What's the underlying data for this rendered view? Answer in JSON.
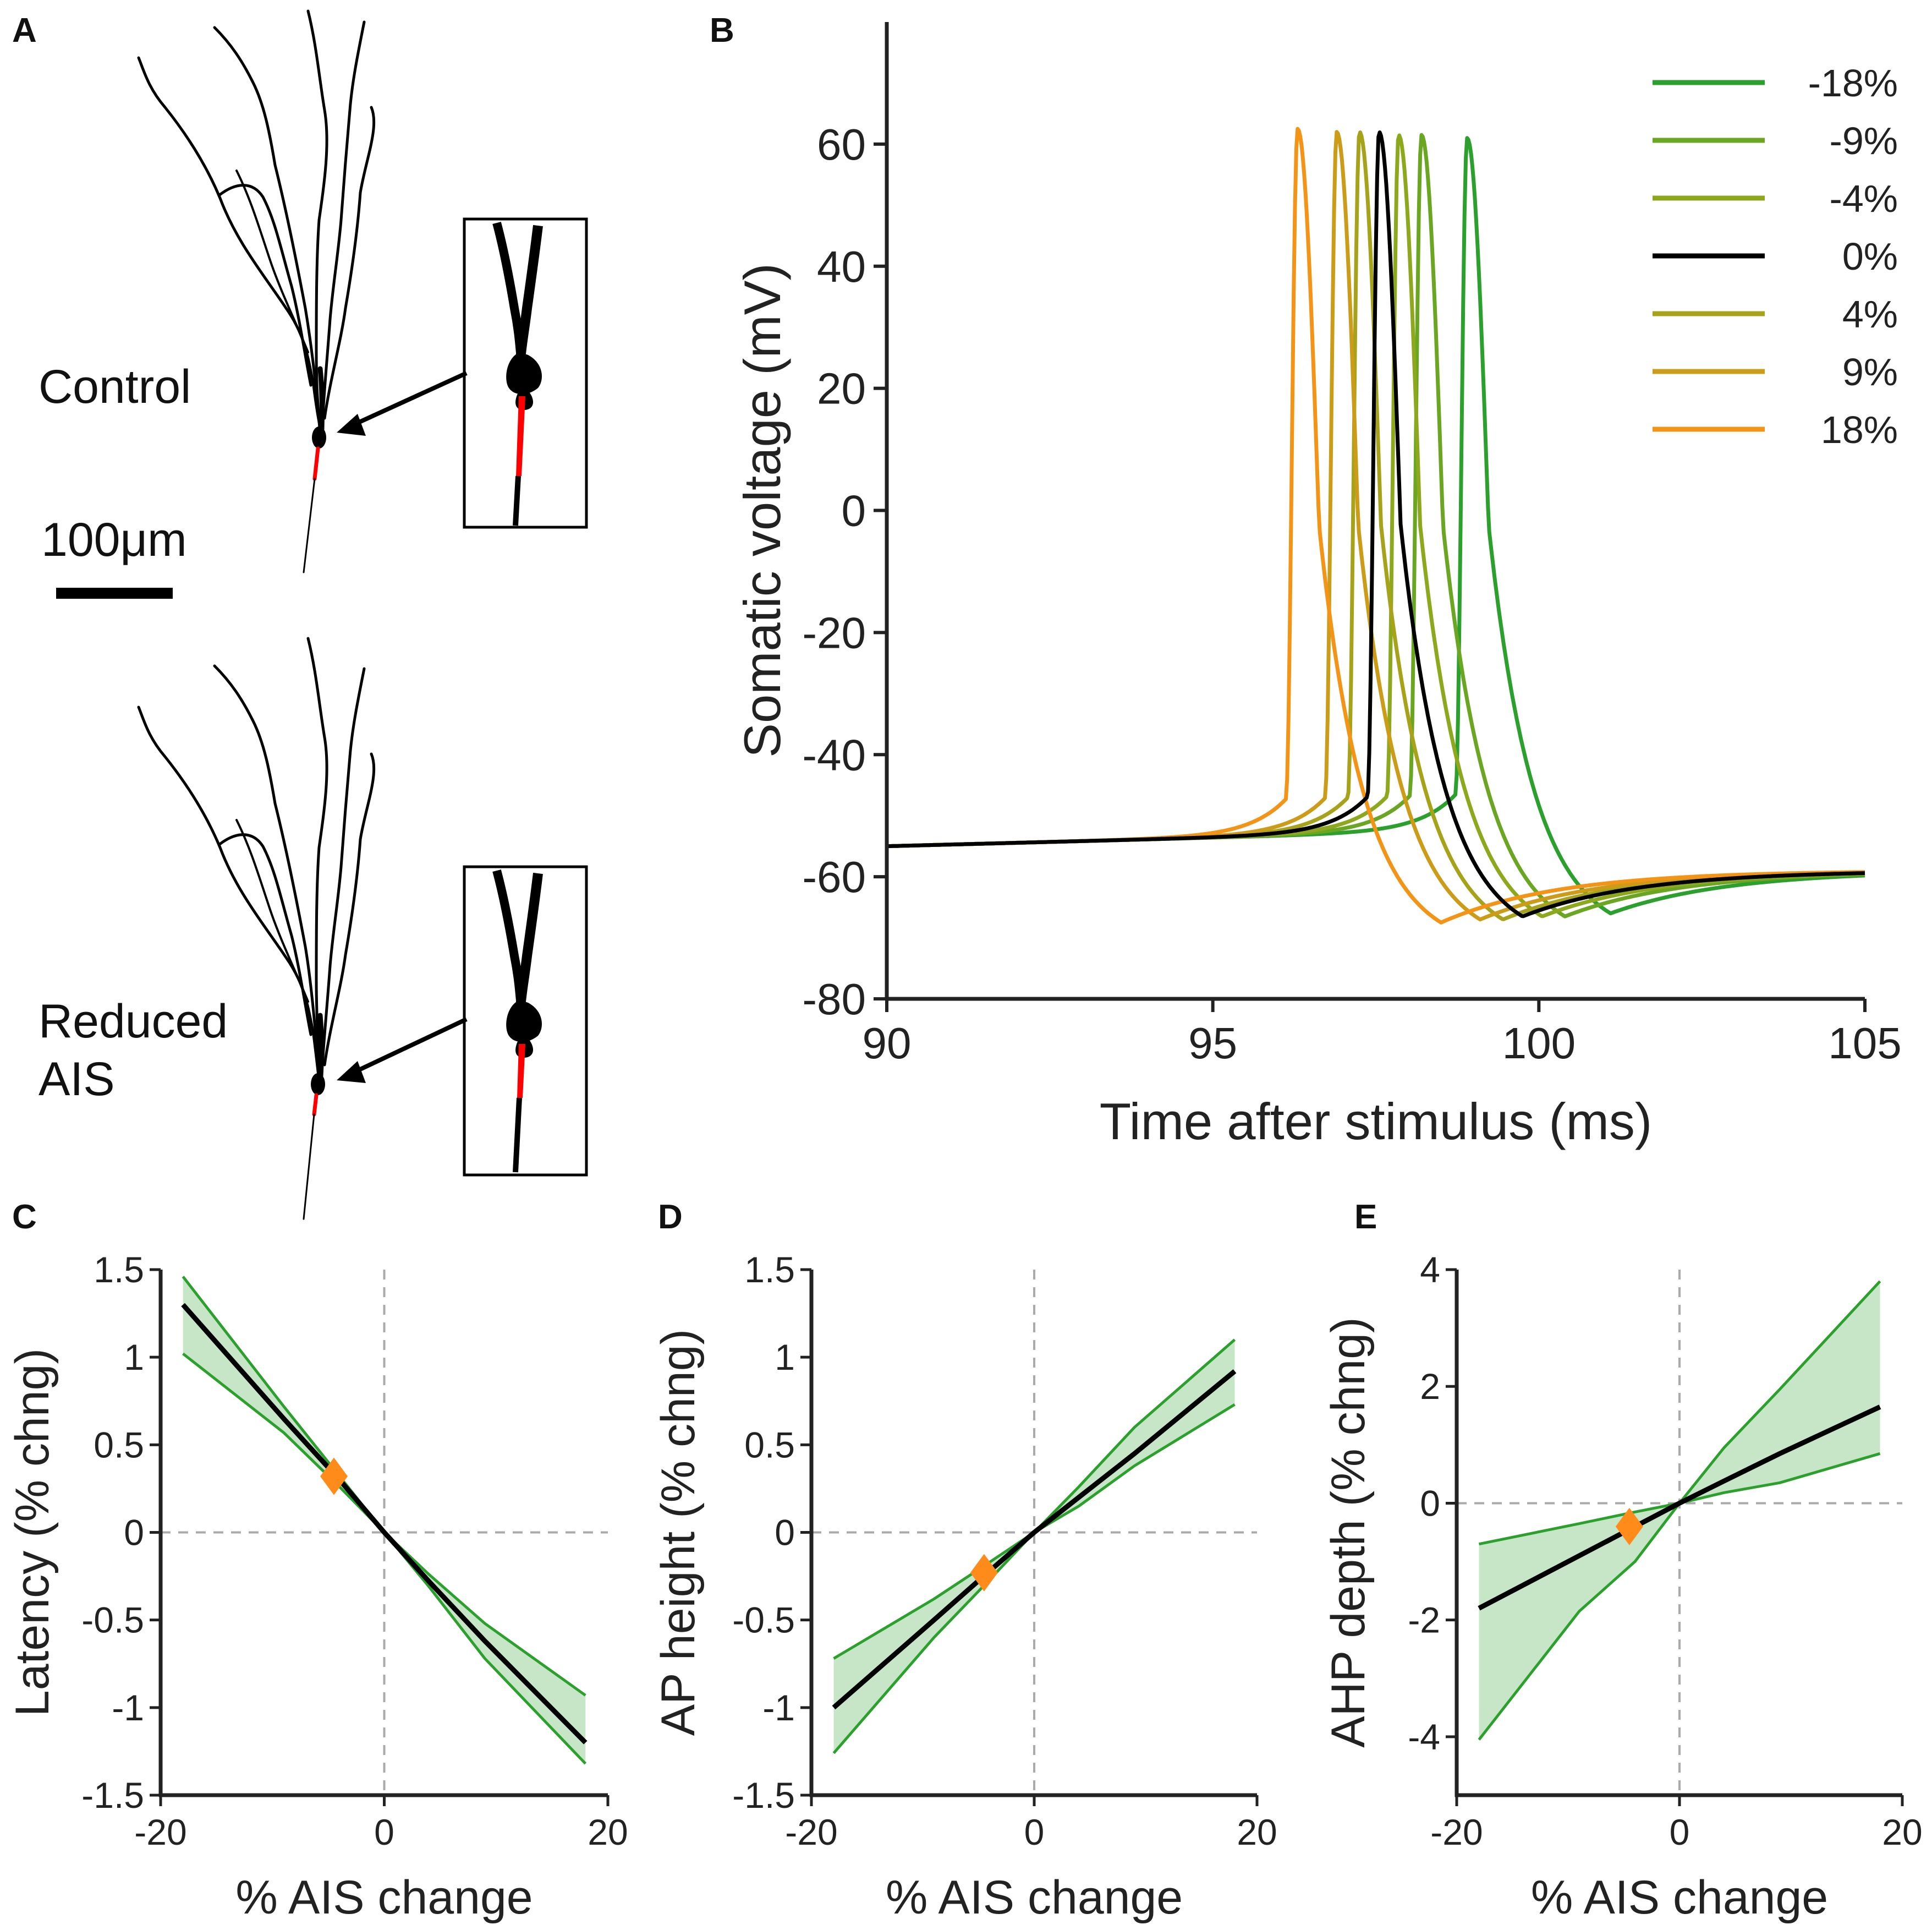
{
  "panel_labels": {
    "a": "A",
    "b": "B",
    "c": "C",
    "d": "D",
    "e": "E"
  },
  "panel_a": {
    "control_label": "Control",
    "reduced_label_line1": "Reduced",
    "reduced_label_line2": "AIS",
    "scale_bar_label": "100μm",
    "axon_color": "#ff0000",
    "dendrite_color": "#000000"
  },
  "colors": {
    "ci_line": "#2ca02c",
    "ci_fill": "#b9e0b9",
    "mean_line": "#000000",
    "marker": "#ff8c1a",
    "zero_line": "#aaaaaa"
  },
  "chart_data": [
    {
      "id": "B",
      "type": "line",
      "xlabel": "Time after stimulus (ms)",
      "ylabel": "Somatic voltage (mV)",
      "xlim": [
        90,
        105
      ],
      "ylim": [
        -80,
        80
      ],
      "xticks": [
        90,
        95,
        100,
        105
      ],
      "yticks": [
        -80,
        -60,
        -40,
        -20,
        0,
        20,
        40,
        60
      ],
      "legend_position": "top-right",
      "baseline_mV": -55,
      "rest_mV": -59,
      "series": [
        {
          "name": "-18%",
          "color": "#2ca02c",
          "peak_time": 98.9,
          "peak_mV": 61,
          "ahp_mV": -66,
          "ahp_time": 101.5
        },
        {
          "name": "-9%",
          "color": "#6aa621",
          "peak_time": 98.2,
          "peak_mV": 61.5,
          "ahp_mV": -66.5,
          "ahp_time": 100.9
        },
        {
          "name": "-4%",
          "color": "#8da81d",
          "peak_time": 97.85,
          "peak_mV": 61.5,
          "ahp_mV": -66.5,
          "ahp_time": 100.5
        },
        {
          "name": "0%",
          "color": "#000000",
          "peak_time": 97.55,
          "peak_mV": 62,
          "ahp_mV": -66.5,
          "ahp_time": 100.0
        },
        {
          "name": "4%",
          "color": "#a6a31a",
          "peak_time": 97.25,
          "peak_mV": 62,
          "ahp_mV": -67,
          "ahp_time": 99.6
        },
        {
          "name": "9%",
          "color": "#cc9c18",
          "peak_time": 96.9,
          "peak_mV": 62,
          "ahp_mV": -67,
          "ahp_time": 99.3
        },
        {
          "name": "18%",
          "color": "#f39417",
          "peak_time": 96.3,
          "peak_mV": 62.5,
          "ahp_mV": -67.5,
          "ahp_time": 98.9
        }
      ]
    },
    {
      "id": "C",
      "type": "line",
      "xlabel": "% AIS change",
      "ylabel": "Latency (% chng)",
      "xlim": [
        -20,
        20
      ],
      "ylim": [
        -1.5,
        1.5
      ],
      "xticks": [
        -20,
        0,
        20
      ],
      "yticks": [
        -1.5,
        -1,
        -0.5,
        0,
        0.5,
        1,
        1.5
      ],
      "ytick_labels": [
        "-1.5",
        "-1",
        "-0.5",
        "0",
        "0.5",
        "1",
        "1.5"
      ],
      "x": [
        -18,
        -9,
        -4,
        0,
        4,
        9,
        18
      ],
      "mean": [
        1.3,
        0.65,
        0.3,
        0,
        -0.28,
        -0.62,
        -1.2
      ],
      "upper": [
        1.46,
        0.72,
        0.32,
        0,
        -0.24,
        -0.52,
        -0.93
      ],
      "lower": [
        1.02,
        0.57,
        0.26,
        0,
        -0.31,
        -0.72,
        -1.32
      ],
      "marker": {
        "x": -4.5,
        "y": 0.32
      }
    },
    {
      "id": "D",
      "type": "line",
      "xlabel": "% AIS change",
      "ylabel": "AP height (% chng)",
      "xlim": [
        -20,
        20
      ],
      "ylim": [
        -1.5,
        1.5
      ],
      "xticks": [
        -20,
        0,
        20
      ],
      "yticks": [
        -1.5,
        -1,
        -0.5,
        0,
        0.5,
        1,
        1.5
      ],
      "ytick_labels": [
        "-1.5",
        "-1",
        "-0.5",
        "0",
        "0.5",
        "1",
        "1.5"
      ],
      "x": [
        -18,
        -9,
        -4,
        0,
        4,
        9,
        18
      ],
      "mean": [
        -1.0,
        -0.5,
        -0.22,
        0,
        0.2,
        0.45,
        0.92
      ],
      "upper": [
        -0.72,
        -0.38,
        -0.17,
        0,
        0.26,
        0.6,
        1.1
      ],
      "lower": [
        -1.26,
        -0.6,
        -0.27,
        0,
        0.15,
        0.38,
        0.73
      ],
      "marker": {
        "x": -4.5,
        "y": -0.23
      }
    },
    {
      "id": "E",
      "type": "line",
      "xlabel": "% AIS change",
      "ylabel": "AHP depth (% chng)",
      "xlim": [
        -20,
        20
      ],
      "ylim": [
        -5,
        4
      ],
      "xticks": [
        -20,
        0,
        20
      ],
      "yticks": [
        -4,
        -2,
        0,
        2,
        4
      ],
      "ytick_labels": [
        "-4",
        "-2",
        "0",
        "2",
        "4"
      ],
      "x": [
        -18,
        -9,
        -4,
        0,
        4,
        9,
        18
      ],
      "mean": [
        -1.8,
        -0.9,
        -0.4,
        0,
        0.38,
        0.85,
        1.65
      ],
      "upper": [
        -0.7,
        -0.35,
        -0.15,
        0,
        0.95,
        1.95,
        3.8
      ],
      "lower": [
        -4.05,
        -1.85,
        -1.0,
        0,
        0.18,
        0.35,
        0.85
      ],
      "marker": {
        "x": -4.5,
        "y": -0.4
      }
    }
  ]
}
